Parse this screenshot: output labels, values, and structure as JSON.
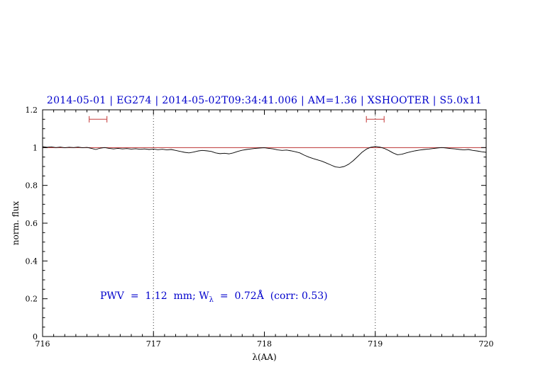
{
  "colors": {
    "title": "#0000cc",
    "annotation": "#0000cc",
    "spectrum": "#000000",
    "continuum": "#bb3333",
    "marker": "#cc5555",
    "axis": "#000000",
    "vline": "#333333"
  },
  "annotation_parts": {
    "part1": "PWV  =  1.12  mm; W",
    "sub": "λ",
    "part2": "  =  0.72Å  (corr: 0.53)"
  },
  "chart_data": {
    "type": "line",
    "title": "2014-05-01 | EG274 | 2014-05-02T09:34:41.006 | AM=1.36 | XSHOOTER | S5.0x11",
    "xlabel": "λ(AA)",
    "ylabel": "norm. flux",
    "xlim": [
      716,
      720
    ],
    "ylim": [
      0,
      1.2
    ],
    "x_major_ticks": [
      716,
      717,
      718,
      719,
      720
    ],
    "x_tick_labels": [
      "716",
      "717",
      "718",
      "719",
      "720"
    ],
    "x_minor_step": 0.1,
    "y_major_ticks": [
      0,
      0.2,
      0.4,
      0.6,
      0.8,
      1,
      1.2
    ],
    "y_tick_labels": [
      "0",
      "0.2",
      "0.4",
      "0.6",
      "0.8",
      "1",
      "1.2"
    ],
    "y_minor_step": 0.05,
    "grid": false,
    "vlines": {
      "x": [
        717,
        719
      ],
      "style": "dotted"
    },
    "continuum": {
      "y": 1.0,
      "x1": 716,
      "x2": 720
    },
    "range_markers": [
      {
        "x1": 716.42,
        "x2": 716.58,
        "y": 1.15
      },
      {
        "x1": 718.92,
        "x2": 719.08,
        "y": 1.15
      }
    ],
    "annotation": {
      "x": 716.52,
      "y": 0.21,
      "text": "PWV = 1.12 mm; Wλ = 0.72Å (corr: 0.53)"
    },
    "series": [
      {
        "name": "spectrum",
        "x_start": 716.0,
        "dx": 0.04,
        "y": [
          1.005,
          1.002,
          1.004,
          1.0,
          1.003,
          0.999,
          1.002,
          1.0,
          1.003,
          0.999,
          1.001,
          0.996,
          0.99,
          0.997,
          1.0,
          0.996,
          0.993,
          0.996,
          0.993,
          0.995,
          0.992,
          0.994,
          0.991,
          0.993,
          0.99,
          0.992,
          0.989,
          0.991,
          0.988,
          0.99,
          0.985,
          0.98,
          0.975,
          0.972,
          0.976,
          0.982,
          0.985,
          0.983,
          0.98,
          0.972,
          0.968,
          0.97,
          0.967,
          0.972,
          0.98,
          0.986,
          0.99,
          0.993,
          0.996,
          0.998,
          0.999,
          0.996,
          0.993,
          0.988,
          0.985,
          0.987,
          0.983,
          0.978,
          0.972,
          0.96,
          0.95,
          0.942,
          0.935,
          0.928,
          0.918,
          0.908,
          0.898,
          0.895,
          0.9,
          0.912,
          0.93,
          0.952,
          0.975,
          0.992,
          1.002,
          1.006,
          1.003,
          0.996,
          0.985,
          0.972,
          0.962,
          0.965,
          0.972,
          0.978,
          0.983,
          0.987,
          0.99,
          0.992,
          0.995,
          0.998,
          1.0,
          0.998,
          0.995,
          0.993,
          0.99,
          0.988,
          0.99,
          0.985,
          0.982,
          0.978,
          0.975
        ]
      },
      {
        "name": "continuum",
        "points": [
          [
            716,
            1.0
          ],
          [
            720,
            1.0
          ]
        ]
      }
    ]
  }
}
